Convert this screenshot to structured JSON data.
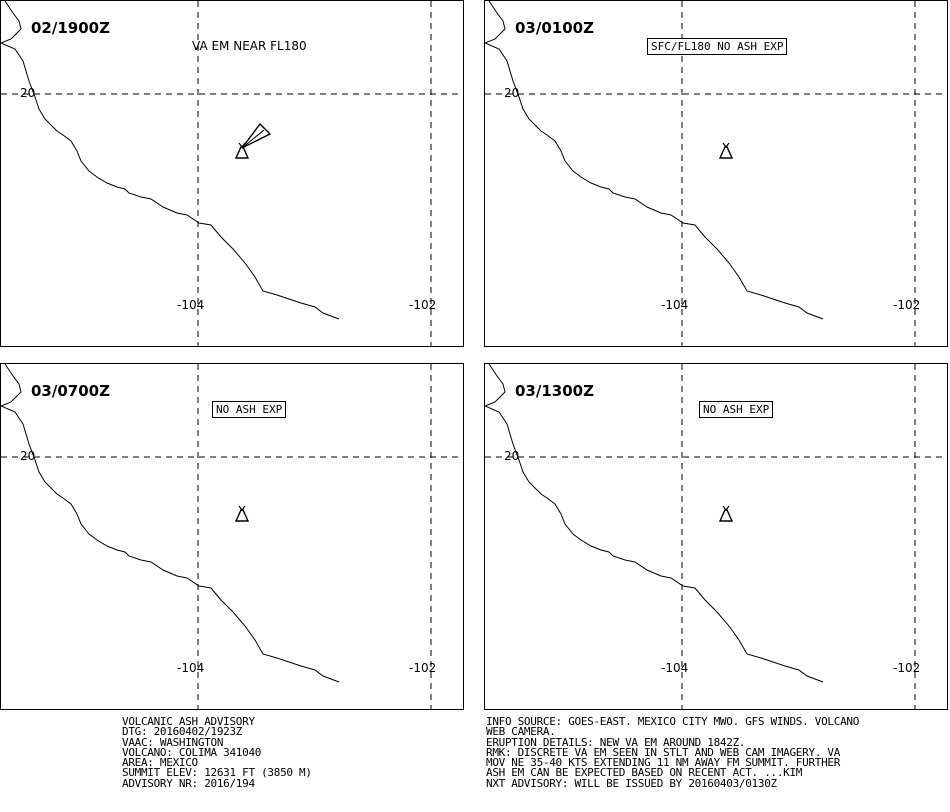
{
  "panels": [
    {
      "time": "02/1900Z",
      "label": "VA EM NEAR FL180",
      "label_boxed": false,
      "plume": true
    },
    {
      "time": "03/0100Z",
      "label": "SFC/FL180 NO ASH EXP",
      "label_boxed": true,
      "plume": false
    },
    {
      "time": "03/0700Z",
      "label": "NO ASH EXP",
      "label_boxed": true,
      "plume": false
    },
    {
      "time": "03/1300Z",
      "label": "NO ASH EXP",
      "label_boxed": true,
      "plume": false
    }
  ],
  "grid": {
    "lat_label": "20",
    "lon_labels": [
      "-104",
      "-102"
    ]
  },
  "advisory_left": [
    "VOLCANIC ASH ADVISORY",
    "DTG: 20160402/1923Z",
    "VAAC: WASHINGTON",
    "VOLCANO: COLIMA 341040",
    "AREA: MEXICO",
    "SUMMIT ELEV: 12631 FT (3850 M)",
    "ADVISORY NR: 2016/194"
  ],
  "advisory_right": [
    "INFO SOURCE: GOES-EAST. MEXICO CITY MWO. GFS WINDS. VOLCANO",
    "WEB CAMERA.",
    "ERUPTION DETAILS: NEW VA EM AROUND 1842Z.",
    "RMK: DISCRETE VA EM SEEN IN STLT AND WEB CAM IMAGERY. VA",
    "MOV NE 35-40 KTS EXTENDING 11 NM AWAY FM SUMMIT. FURTHER",
    "ASH EM CAN BE EXPECTED BASED ON RECENT ACT. ...KIM",
    "NXT ADVISORY: WILL BE ISSUED BY 20160403/0130Z"
  ]
}
